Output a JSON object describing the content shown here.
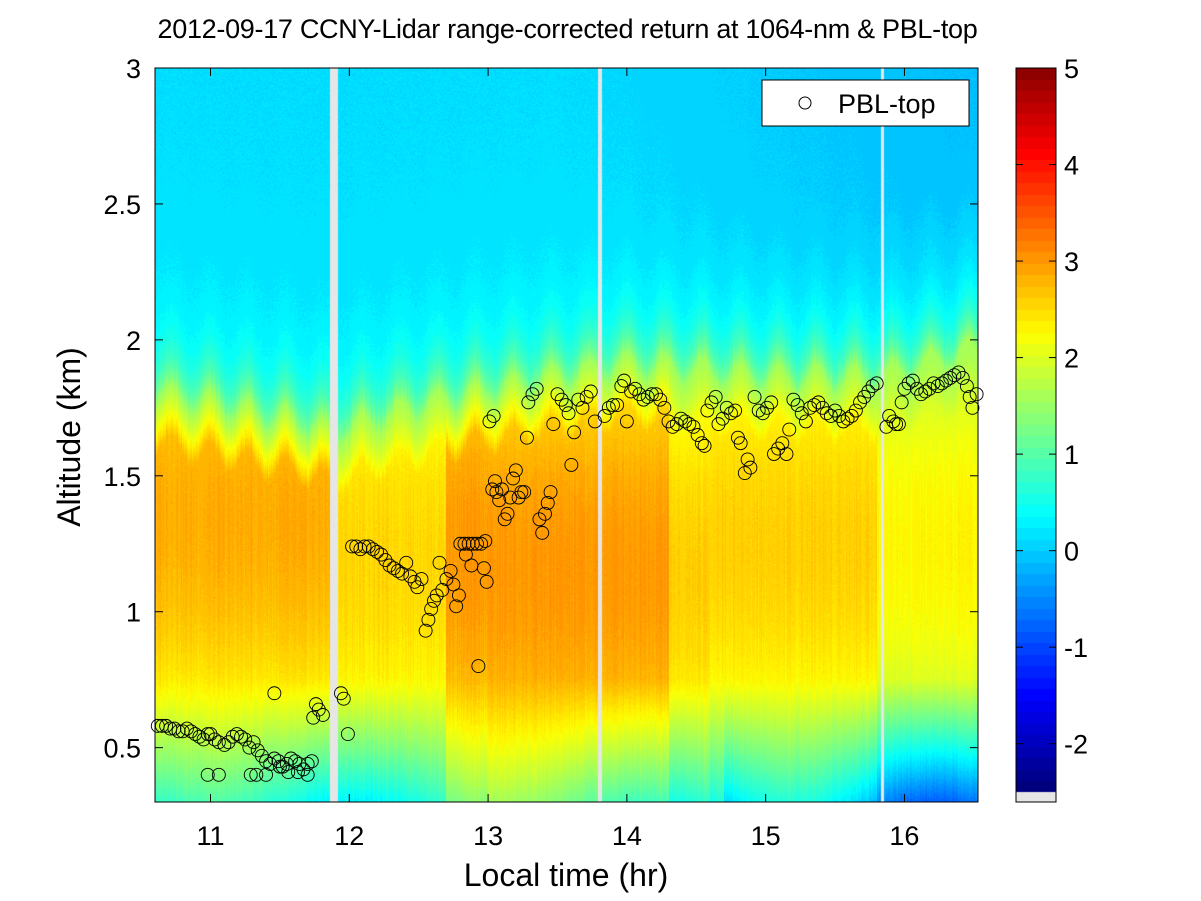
{
  "chart_data": {
    "type": "heatmap",
    "title": "2012-09-17 CCNY-Lidar range-corrected return at 1064-nm & PBL-top",
    "xlabel": "Local time (hr)",
    "ylabel": "Altitude (km)",
    "xlim": [
      10.6,
      16.53
    ],
    "ylim": [
      0.3,
      3.0
    ],
    "x_ticks": [
      11,
      12,
      13,
      14,
      15,
      16
    ],
    "x_tick_labels": [
      "11",
      "12",
      "13",
      "14",
      "15",
      "16"
    ],
    "y_ticks": [
      0.5,
      1,
      1.5,
      2,
      2.5,
      3
    ],
    "y_tick_labels": [
      "0.5",
      "1",
      "1.5",
      "2",
      "2.5",
      "3"
    ],
    "colorbar": {
      "colormap": "jet",
      "clim": [
        -2.5,
        5
      ],
      "ticks": [
        -2,
        -1,
        0,
        1,
        2,
        3,
        4,
        5
      ],
      "tick_labels": [
        "-2",
        "-1",
        "0",
        "1",
        "2",
        "3",
        "4",
        "5"
      ],
      "nodata_color": "#e6e6e6"
    },
    "data_gaps_hr": [
      [
        11.86,
        11.92
      ],
      [
        13.79,
        13.82
      ],
      [
        15.83,
        15.85
      ]
    ],
    "field_description": {
      "free_troposphere_value": 0.1,
      "boundary_layer_peak_value": 3.0,
      "near_surface_value": 1.7,
      "mixed_layer_top_km": [
        [
          10.6,
          1.8
        ],
        [
          11.9,
          1.65
        ],
        [
          12.5,
          1.75
        ],
        [
          13.0,
          1.8
        ],
        [
          13.5,
          1.85
        ],
        [
          14.0,
          1.9
        ],
        [
          15.0,
          1.85
        ],
        [
          15.8,
          1.85
        ],
        [
          16.5,
          1.95
        ]
      ]
    },
    "legend": {
      "position": "top-right",
      "entries": [
        {
          "label": "PBL-top",
          "marker": "open-circle"
        }
      ]
    },
    "series": [
      {
        "name": "PBL-top",
        "marker": "open-circle",
        "points": [
          [
            10.62,
            0.58
          ],
          [
            10.65,
            0.58
          ],
          [
            10.68,
            0.58
          ],
          [
            10.71,
            0.57
          ],
          [
            10.74,
            0.57
          ],
          [
            10.77,
            0.56
          ],
          [
            10.8,
            0.56
          ],
          [
            10.83,
            0.57
          ],
          [
            10.86,
            0.56
          ],
          [
            10.89,
            0.55
          ],
          [
            10.92,
            0.54
          ],
          [
            10.95,
            0.53
          ],
          [
            10.98,
            0.55
          ],
          [
            11.0,
            0.55
          ],
          [
            11.03,
            0.53
          ],
          [
            11.06,
            0.52
          ],
          [
            11.1,
            0.51
          ],
          [
            11.13,
            0.52
          ],
          [
            11.16,
            0.54
          ],
          [
            11.19,
            0.55
          ],
          [
            11.22,
            0.54
          ],
          [
            11.25,
            0.53
          ],
          [
            11.28,
            0.5
          ],
          [
            11.31,
            0.52
          ],
          [
            11.34,
            0.49
          ],
          [
            11.37,
            0.47
          ],
          [
            11.4,
            0.45
          ],
          [
            11.43,
            0.44
          ],
          [
            11.46,
            0.46
          ],
          [
            11.49,
            0.45
          ],
          [
            11.52,
            0.43
          ],
          [
            11.55,
            0.44
          ],
          [
            11.58,
            0.46
          ],
          [
            11.61,
            0.45
          ],
          [
            11.64,
            0.44
          ],
          [
            11.67,
            0.42
          ],
          [
            11.7,
            0.44
          ],
          [
            11.73,
            0.45
          ],
          [
            10.98,
            0.4
          ],
          [
            11.06,
            0.4
          ],
          [
            11.29,
            0.4
          ],
          [
            11.33,
            0.4
          ],
          [
            11.4,
            0.4
          ],
          [
            11.5,
            0.43
          ],
          [
            11.56,
            0.41
          ],
          [
            11.63,
            0.41
          ],
          [
            11.7,
            0.4
          ],
          [
            11.46,
            0.7
          ],
          [
            11.74,
            0.61
          ],
          [
            11.76,
            0.66
          ],
          [
            11.78,
            0.64
          ],
          [
            11.81,
            0.62
          ],
          [
            11.94,
            0.7
          ],
          [
            11.96,
            0.68
          ],
          [
            11.99,
            0.55
          ],
          [
            12.02,
            1.24
          ],
          [
            12.05,
            1.24
          ],
          [
            12.08,
            1.23
          ],
          [
            12.11,
            1.24
          ],
          [
            12.14,
            1.24
          ],
          [
            12.17,
            1.23
          ],
          [
            12.2,
            1.22
          ],
          [
            12.23,
            1.21
          ],
          [
            12.26,
            1.19
          ],
          [
            12.29,
            1.17
          ],
          [
            12.32,
            1.16
          ],
          [
            12.35,
            1.15
          ],
          [
            12.38,
            1.14
          ],
          [
            12.41,
            1.18
          ],
          [
            12.44,
            1.13
          ],
          [
            12.47,
            1.11
          ],
          [
            12.49,
            1.09
          ],
          [
            12.52,
            1.12
          ],
          [
            12.55,
            0.93
          ],
          [
            12.57,
            0.97
          ],
          [
            12.59,
            1.01
          ],
          [
            12.61,
            1.04
          ],
          [
            12.63,
            1.06
          ],
          [
            12.65,
            1.18
          ],
          [
            12.67,
            1.08
          ],
          [
            12.7,
            1.12
          ],
          [
            12.73,
            1.15
          ],
          [
            12.75,
            1.1
          ],
          [
            12.77,
            1.02
          ],
          [
            12.79,
            1.06
          ],
          [
            12.8,
            1.25
          ],
          [
            12.83,
            1.25
          ],
          [
            12.86,
            1.25
          ],
          [
            12.89,
            1.25
          ],
          [
            12.92,
            1.25
          ],
          [
            12.95,
            1.25
          ],
          [
            12.98,
            1.26
          ],
          [
            12.84,
            1.21
          ],
          [
            12.88,
            1.17
          ],
          [
            12.97,
            1.16
          ],
          [
            12.99,
            1.11
          ],
          [
            12.93,
            0.8
          ],
          [
            13.01,
            1.7
          ],
          [
            13.04,
            1.72
          ],
          [
            13.05,
            1.48
          ],
          [
            13.03,
            1.45
          ],
          [
            13.06,
            1.44
          ],
          [
            13.08,
            1.41
          ],
          [
            13.1,
            1.45
          ],
          [
            13.12,
            1.34
          ],
          [
            13.14,
            1.36
          ],
          [
            13.16,
            1.42
          ],
          [
            13.18,
            1.49
          ],
          [
            13.2,
            1.52
          ],
          [
            13.22,
            1.42
          ],
          [
            13.24,
            1.44
          ],
          [
            13.26,
            1.44
          ],
          [
            13.28,
            1.64
          ],
          [
            13.29,
            1.77
          ],
          [
            13.32,
            1.8
          ],
          [
            13.35,
            1.82
          ],
          [
            13.37,
            1.34
          ],
          [
            13.39,
            1.29
          ],
          [
            13.41,
            1.36
          ],
          [
            13.43,
            1.4
          ],
          [
            13.45,
            1.44
          ],
          [
            13.47,
            1.69
          ],
          [
            13.5,
            1.8
          ],
          [
            13.53,
            1.78
          ],
          [
            13.56,
            1.76
          ],
          [
            13.58,
            1.73
          ],
          [
            13.6,
            1.54
          ],
          [
            13.62,
            1.66
          ],
          [
            13.65,
            1.78
          ],
          [
            13.68,
            1.75
          ],
          [
            13.71,
            1.79
          ],
          [
            13.74,
            1.81
          ],
          [
            13.77,
            1.7
          ],
          [
            13.84,
            1.72
          ],
          [
            13.87,
            1.75
          ],
          [
            13.9,
            1.76
          ],
          [
            13.93,
            1.76
          ],
          [
            13.96,
            1.83
          ],
          [
            13.98,
            1.85
          ],
          [
            14.0,
            1.7
          ],
          [
            14.03,
            1.81
          ],
          [
            14.06,
            1.82
          ],
          [
            14.09,
            1.8
          ],
          [
            14.12,
            1.78
          ],
          [
            14.15,
            1.79
          ],
          [
            14.18,
            1.8
          ],
          [
            14.21,
            1.8
          ],
          [
            14.24,
            1.78
          ],
          [
            14.27,
            1.75
          ],
          [
            14.3,
            1.7
          ],
          [
            14.33,
            1.68
          ],
          [
            14.36,
            1.69
          ],
          [
            14.39,
            1.71
          ],
          [
            14.42,
            1.7
          ],
          [
            14.45,
            1.69
          ],
          [
            14.48,
            1.68
          ],
          [
            14.51,
            1.65
          ],
          [
            14.54,
            1.62
          ],
          [
            14.56,
            1.61
          ],
          [
            14.58,
            1.74
          ],
          [
            14.61,
            1.77
          ],
          [
            14.64,
            1.79
          ],
          [
            14.66,
            1.69
          ],
          [
            14.69,
            1.71
          ],
          [
            14.72,
            1.75
          ],
          [
            14.75,
            1.73
          ],
          [
            14.78,
            1.74
          ],
          [
            14.8,
            1.64
          ],
          [
            14.82,
            1.62
          ],
          [
            14.85,
            1.51
          ],
          [
            14.87,
            1.56
          ],
          [
            14.89,
            1.53
          ],
          [
            14.92,
            1.79
          ],
          [
            14.95,
            1.74
          ],
          [
            14.98,
            1.73
          ],
          [
            15.01,
            1.75
          ],
          [
            15.04,
            1.77
          ],
          [
            15.06,
            1.58
          ],
          [
            15.09,
            1.6
          ],
          [
            15.12,
            1.62
          ],
          [
            15.15,
            1.58
          ],
          [
            15.17,
            1.67
          ],
          [
            15.2,
            1.78
          ],
          [
            15.23,
            1.76
          ],
          [
            15.26,
            1.73
          ],
          [
            15.29,
            1.7
          ],
          [
            15.32,
            1.75
          ],
          [
            15.35,
            1.76
          ],
          [
            15.38,
            1.77
          ],
          [
            15.41,
            1.75
          ],
          [
            15.44,
            1.73
          ],
          [
            15.47,
            1.72
          ],
          [
            15.5,
            1.74
          ],
          [
            15.53,
            1.72
          ],
          [
            15.56,
            1.7
          ],
          [
            15.59,
            1.71
          ],
          [
            15.62,
            1.72
          ],
          [
            15.65,
            1.74
          ],
          [
            15.68,
            1.77
          ],
          [
            15.71,
            1.79
          ],
          [
            15.74,
            1.81
          ],
          [
            15.77,
            1.83
          ],
          [
            15.8,
            1.84
          ],
          [
            15.87,
            1.68
          ],
          [
            15.89,
            1.72
          ],
          [
            15.92,
            1.7
          ],
          [
            15.94,
            1.69
          ],
          [
            15.96,
            1.69
          ],
          [
            15.98,
            1.77
          ],
          [
            16.0,
            1.82
          ],
          [
            16.03,
            1.84
          ],
          [
            16.06,
            1.85
          ],
          [
            16.09,
            1.82
          ],
          [
            16.12,
            1.8
          ],
          [
            16.15,
            1.81
          ],
          [
            16.18,
            1.82
          ],
          [
            16.21,
            1.84
          ],
          [
            16.24,
            1.83
          ],
          [
            16.27,
            1.84
          ],
          [
            16.3,
            1.85
          ],
          [
            16.33,
            1.86
          ],
          [
            16.36,
            1.87
          ],
          [
            16.39,
            1.88
          ],
          [
            16.42,
            1.86
          ],
          [
            16.45,
            1.83
          ],
          [
            16.47,
            1.79
          ],
          [
            16.49,
            1.75
          ],
          [
            16.52,
            1.8
          ]
        ]
      }
    ]
  }
}
